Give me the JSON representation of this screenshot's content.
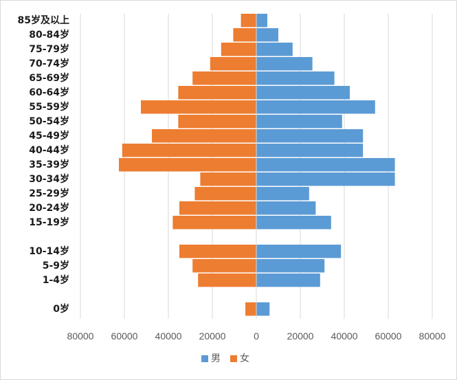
{
  "chart_data": {
    "type": "bar",
    "orientation": "horizontal",
    "layout": "population-pyramid",
    "categories": [
      "85岁及以上",
      "80-84岁",
      "75-79岁",
      "70-74岁",
      "65-69岁",
      "60-64岁",
      "55-59岁",
      "50-54岁",
      "45-49岁",
      "40-44岁",
      "35-39岁",
      "30-34岁",
      "25-29岁",
      "20-24岁",
      "15-19岁",
      "",
      "10-14岁",
      "5-9岁",
      "1-4岁",
      "",
      "0岁"
    ],
    "series": [
      {
        "name": "男",
        "side": "right",
        "color": "#5b9bd5",
        "values": [
          5000,
          10000,
          16500,
          25500,
          35500,
          42500,
          54000,
          39000,
          48500,
          48500,
          63000,
          63000,
          24000,
          27000,
          34000,
          null,
          38500,
          31000,
          29000,
          null,
          6000
        ]
      },
      {
        "name": "女",
        "side": "left",
        "color": "#ed7d31",
        "values": [
          7000,
          10500,
          16000,
          21000,
          29000,
          35500,
          52500,
          35500,
          47500,
          61000,
          62500,
          25500,
          28000,
          35000,
          38000,
          null,
          35000,
          29000,
          26500,
          null,
          5000
        ]
      }
    ],
    "xlim": [
      -80000,
      80000
    ],
    "xticks": [
      -80000,
      -60000,
      -40000,
      -20000,
      0,
      20000,
      40000,
      60000,
      80000
    ],
    "xtick_labels": [
      "80000",
      "60000",
      "40000",
      "20000",
      "0",
      "20000",
      "40000",
      "60000",
      "80000"
    ],
    "grid": true,
    "legend": [
      "男",
      "女"
    ],
    "legend_position": "bottom",
    "title": "",
    "xlabel": "",
    "ylabel": ""
  }
}
